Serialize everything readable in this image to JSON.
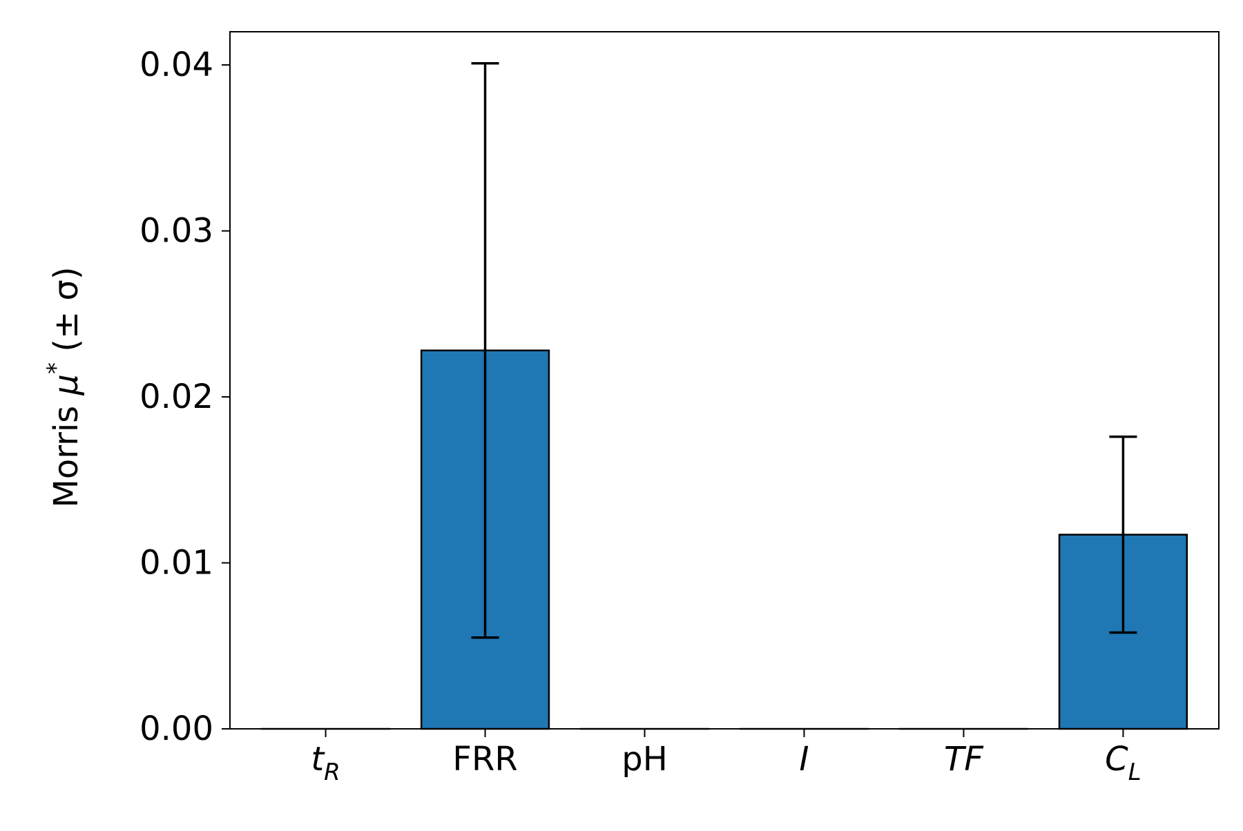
{
  "chart_data": {
    "type": "bar",
    "categories": [
      {
        "base": "t",
        "sub": "R",
        "italic": true
      },
      {
        "base": "FRR",
        "sub": "",
        "italic": false
      },
      {
        "base": "pH",
        "sub": "",
        "italic": false
      },
      {
        "base": "I",
        "sub": "",
        "italic": true
      },
      {
        "base": "TF",
        "sub": "",
        "italic": true
      },
      {
        "base": "C",
        "sub": "L",
        "italic": true
      }
    ],
    "values": [
      0.0,
      0.0228,
      0.0,
      0.0,
      0.0,
      0.0117
    ],
    "errors": [
      0.0,
      0.0173,
      0.0,
      0.0,
      0.0,
      0.0059
    ],
    "ylabel": {
      "prefix": "Morris ",
      "symbol": "μ",
      "superscript": "*",
      "suffix": "  (± σ)"
    },
    "ylim": [
      0,
      0.042
    ],
    "yticks": [
      0.0,
      0.01,
      0.02,
      0.03,
      0.04
    ],
    "ytick_labels": [
      "0.00",
      "0.01",
      "0.02",
      "0.03",
      "0.04"
    ],
    "bar_color": "#1f77b4",
    "edge_color": "#000000",
    "grid": false,
    "legend": "none"
  }
}
